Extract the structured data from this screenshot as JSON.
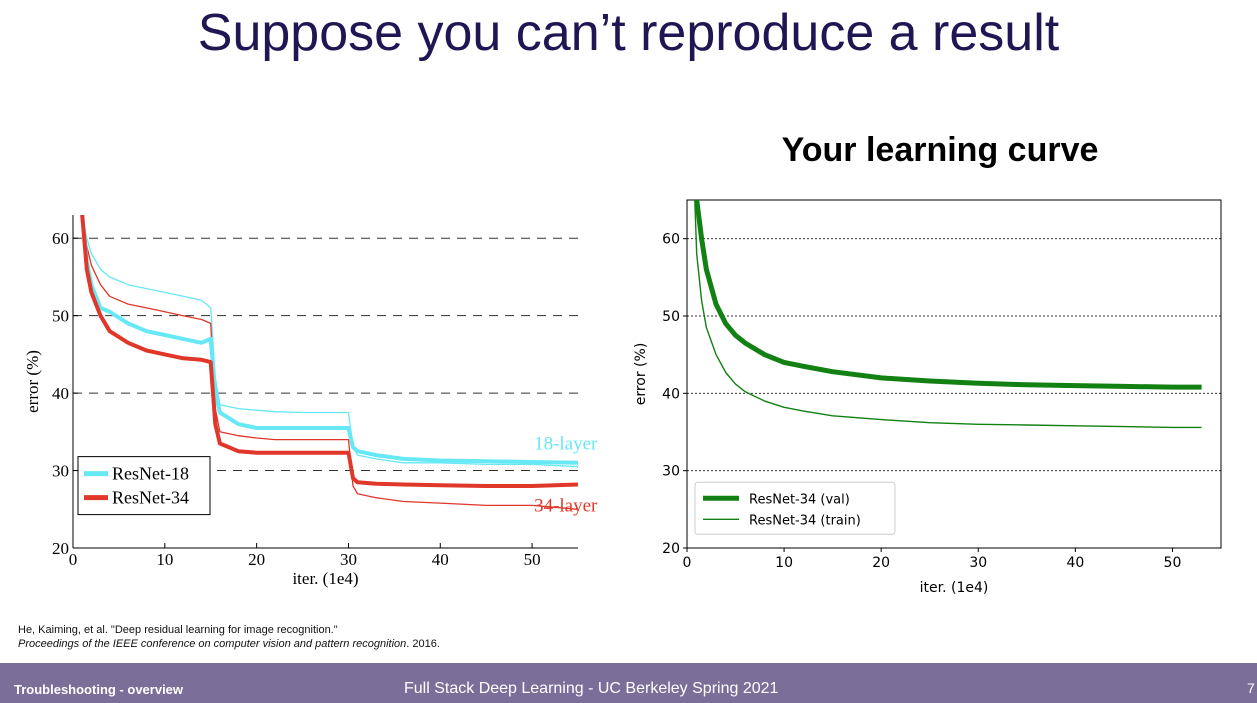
{
  "slide": {
    "title": "Suppose you can’t reproduce a result",
    "right_heading": "Your learning curve"
  },
  "citation": {
    "line1": "He, Kaiming, et al. \"Deep residual learning for image recognition.\"",
    "line2_italic": "Proceedings of the IEEE conference on computer vision and pattern recognition",
    "line2_suffix": ". 2016."
  },
  "footer": {
    "left": "Troubleshooting - overview",
    "center": "Full Stack Deep Learning - UC Berkeley Spring 2021",
    "page": "7"
  },
  "colors": {
    "title": "#1f1654",
    "footer_bg": "#7b6f9a",
    "resnet18": "#66e8f5",
    "resnet34": "#e0372a",
    "green": "#128012"
  },
  "chart_data": [
    {
      "type": "line",
      "title": "",
      "xlabel": "iter. (1e4)",
      "ylabel": "error (%)",
      "xlim": [
        0,
        55
      ],
      "ylim": [
        20,
        63
      ],
      "xticks": [
        0,
        10,
        20,
        30,
        40,
        50
      ],
      "yticks": [
        20,
        30,
        40,
        50,
        60
      ],
      "grid": "dashed horizontal",
      "legend": "bottom-left",
      "annotations": [
        {
          "text": "18-layer",
          "x": 50,
          "y": 33.5,
          "color": "#66e8f5"
        },
        {
          "text": "34-layer",
          "x": 50,
          "y": 25.5,
          "color": "#e0372a"
        }
      ],
      "series": [
        {
          "name": "ResNet-18",
          "role": "val",
          "color": "#66e8f5",
          "x": [
            1,
            1.5,
            2,
            3,
            4,
            6,
            8,
            10,
            12,
            14,
            15,
            15.5,
            16,
            18,
            20,
            22,
            25,
            28,
            30,
            30.5,
            31,
            33,
            36,
            40,
            45,
            50,
            55
          ],
          "y": [
            63,
            57,
            54,
            51,
            50.5,
            49,
            48,
            47.5,
            47,
            46.5,
            47,
            40,
            37.5,
            36,
            35.5,
            35.5,
            35.5,
            35.5,
            35.5,
            33,
            32.5,
            32,
            31.5,
            31.3,
            31.2,
            31.1,
            31
          ]
        },
        {
          "name": "ResNet-18 (train)",
          "role": "train",
          "color": "#66e8f5",
          "x": [
            1,
            1.5,
            2,
            3,
            4,
            6,
            8,
            10,
            12,
            14,
            15,
            15.5,
            16,
            18,
            20,
            22,
            25,
            28,
            30,
            30.5,
            31,
            33,
            36,
            40,
            45,
            50,
            55
          ],
          "y": [
            63,
            60,
            58,
            56,
            55,
            54,
            53.5,
            53,
            52.5,
            52,
            51,
            42,
            38.5,
            38,
            37.8,
            37.6,
            37.5,
            37.5,
            37.5,
            33,
            32,
            31.5,
            31,
            31,
            30.8,
            30.8,
            30.5
          ]
        },
        {
          "name": "ResNet-34",
          "role": "val",
          "color": "#e0372a",
          "x": [
            1,
            1.5,
            2,
            3,
            4,
            6,
            8,
            10,
            12,
            14,
            15,
            15.5,
            16,
            18,
            20,
            22,
            25,
            28,
            30,
            30.5,
            31,
            33,
            36,
            40,
            45,
            50,
            55
          ],
          "y": [
            63,
            56,
            53,
            50,
            48,
            46.5,
            45.5,
            45,
            44.5,
            44.3,
            44,
            36,
            33.5,
            32.5,
            32.3,
            32.3,
            32.3,
            32.3,
            32.3,
            29,
            28.5,
            28.3,
            28.2,
            28.1,
            28,
            28,
            28.2
          ]
        },
        {
          "name": "ResNet-34 (train)",
          "role": "train",
          "color": "#e0372a",
          "x": [
            1,
            1.5,
            2,
            3,
            4,
            6,
            8,
            10,
            12,
            14,
            15,
            15.5,
            16,
            18,
            20,
            22,
            25,
            28,
            30,
            30.5,
            31,
            33,
            36,
            40,
            45,
            50,
            55
          ],
          "y": [
            63,
            59,
            56.5,
            54,
            52.5,
            51.5,
            51,
            50.5,
            50,
            49.5,
            49,
            38,
            35,
            34.5,
            34.2,
            34,
            34,
            34,
            34,
            28,
            27,
            26.5,
            26,
            25.8,
            25.5,
            25.5,
            25
          ]
        }
      ]
    },
    {
      "type": "line",
      "title": "Your learning curve",
      "xlabel": "iter. (1e4)",
      "ylabel": "error (%)",
      "xlim": [
        0,
        55
      ],
      "ylim": [
        20,
        65
      ],
      "xticks": [
        0,
        10,
        20,
        30,
        40,
        50
      ],
      "yticks": [
        20,
        30,
        40,
        50,
        60
      ],
      "grid": "dotted horizontal",
      "legend": "bottom-left",
      "series": [
        {
          "name": "ResNet-34 (val)",
          "role": "val",
          "color": "#128012",
          "x": [
            1,
            1.5,
            2,
            3,
            4,
            5,
            6,
            8,
            10,
            12,
            15,
            20,
            25,
            30,
            35,
            40,
            45,
            50,
            53
          ],
          "y": [
            65,
            60,
            56,
            51.5,
            49,
            47.5,
            46.5,
            45,
            44,
            43.5,
            42.8,
            42,
            41.6,
            41.3,
            41.1,
            41,
            40.9,
            40.8,
            40.8
          ]
        },
        {
          "name": "ResNet-34 (train)",
          "role": "train",
          "color": "#128012",
          "x": [
            0.8,
            1,
            1.5,
            2,
            3,
            4,
            5,
            6,
            8,
            10,
            12,
            15,
            20,
            25,
            30,
            35,
            40,
            45,
            50,
            53
          ],
          "y": [
            65,
            58,
            52,
            48.5,
            45,
            42.7,
            41.2,
            40.2,
            39,
            38.2,
            37.7,
            37.1,
            36.6,
            36.2,
            36,
            35.9,
            35.8,
            35.7,
            35.6,
            35.6
          ]
        }
      ]
    }
  ]
}
